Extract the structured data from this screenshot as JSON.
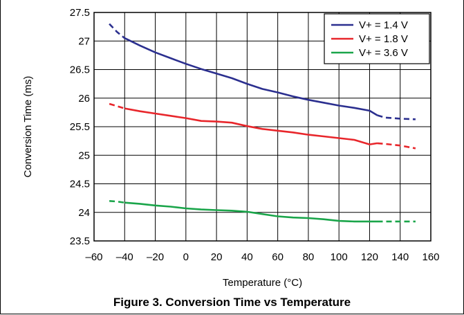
{
  "caption": "Figure 3. Conversion Time vs Temperature",
  "chart_data": {
    "type": "line",
    "title": "",
    "xlabel": "Temperature (°C)",
    "ylabel": "Conversion Time (ms)",
    "xlim": [
      -60,
      160
    ],
    "ylim": [
      23.5,
      27.5
    ],
    "x_ticks": [
      -60,
      -40,
      -20,
      0,
      20,
      40,
      60,
      80,
      100,
      120,
      140,
      160
    ],
    "x_tick_labels": [
      "–60",
      "–40",
      "–20",
      "0",
      "20",
      "40",
      "60",
      "80",
      "100",
      "120",
      "140",
      "160"
    ],
    "y_ticks": [
      23.5,
      24,
      24.5,
      25,
      25.5,
      26,
      26.5,
      27,
      27.5
    ],
    "y_tick_labels": [
      "23.5",
      "24",
      "24.5",
      "25",
      "25.5",
      "26",
      "26.5",
      "27",
      "27.5"
    ],
    "grid": true,
    "legend_position": "top-right",
    "note": "Segments below -40 °C and above 125 °C are drawn dashed.",
    "series": [
      {
        "name": "V+ = 1.4 V",
        "color": "#2b2f8f",
        "x": [
          -50,
          -45,
          -40,
          -30,
          -20,
          -10,
          0,
          10,
          20,
          30,
          40,
          50,
          60,
          70,
          80,
          90,
          100,
          110,
          120,
          125,
          130,
          140,
          150
        ],
        "values": [
          27.3,
          27.16,
          27.05,
          26.92,
          26.8,
          26.7,
          26.6,
          26.51,
          26.43,
          26.35,
          26.25,
          26.16,
          26.1,
          26.03,
          25.97,
          25.92,
          25.87,
          25.83,
          25.78,
          25.7,
          25.66,
          25.64,
          25.63
        ]
      },
      {
        "name": "V+ = 1.8 V",
        "color": "#e8262b",
        "x": [
          -50,
          -45,
          -40,
          -30,
          -20,
          -10,
          0,
          10,
          20,
          30,
          40,
          50,
          60,
          70,
          80,
          90,
          100,
          110,
          120,
          125,
          130,
          140,
          150
        ],
        "values": [
          25.9,
          25.86,
          25.82,
          25.77,
          25.73,
          25.69,
          25.65,
          25.6,
          25.59,
          25.57,
          25.51,
          25.46,
          25.43,
          25.4,
          25.36,
          25.33,
          25.3,
          25.27,
          25.19,
          25.21,
          25.2,
          25.17,
          25.12
        ]
      },
      {
        "name": "V+ = 3.6 V",
        "color": "#1aa54a",
        "x": [
          -50,
          -45,
          -40,
          -30,
          -20,
          -10,
          0,
          10,
          20,
          30,
          40,
          50,
          60,
          70,
          80,
          90,
          100,
          110,
          120,
          125,
          130,
          140,
          150
        ],
        "values": [
          24.2,
          24.19,
          24.17,
          24.15,
          24.12,
          24.1,
          24.07,
          24.05,
          24.04,
          24.03,
          24.01,
          23.97,
          23.93,
          23.91,
          23.9,
          23.88,
          23.85,
          23.84,
          23.84,
          23.84,
          23.84,
          23.84,
          23.84
        ]
      }
    ]
  }
}
